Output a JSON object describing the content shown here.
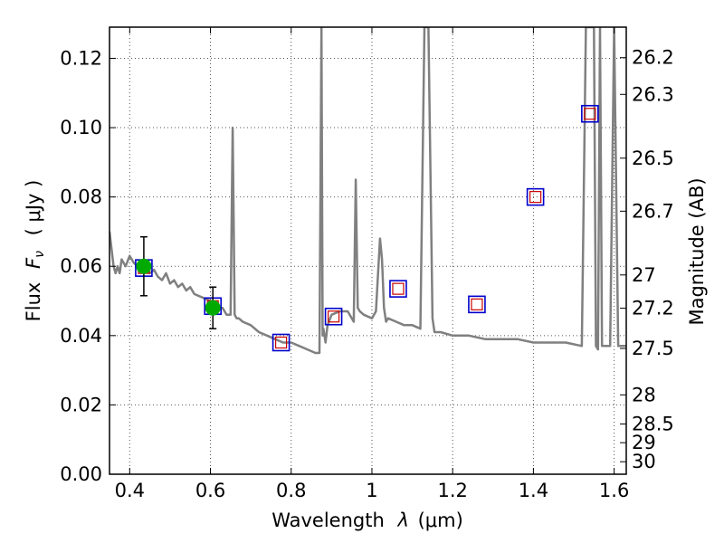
{
  "chart_data": {
    "type": "line",
    "xlabel": "Wavelength",
    "xlabel_symbol": "λ",
    "xlabel_unit": "(μm)",
    "ylabel": "Flux",
    "ylabel_symbol": "F",
    "ylabel_subscript": "ν",
    "ylabel_unit": "( μJy )",
    "y2label": "Magnitude (AB)",
    "xlim": [
      0.35,
      1.63
    ],
    "ylim": [
      0.0,
      0.129
    ],
    "grid": true,
    "x_ticks": [
      0.4,
      0.6,
      0.8,
      1.0,
      1.2,
      1.4,
      1.6
    ],
    "x_tick_labels": [
      "0.4",
      "0.6",
      "0.8",
      "1",
      "1.2",
      "1.4",
      "1.6"
    ],
    "y_ticks": [
      0.0,
      0.02,
      0.04,
      0.06,
      0.08,
      0.1,
      0.12
    ],
    "y_tick_labels": [
      "0.00",
      "0.02",
      "0.04",
      "0.06",
      "0.08",
      "0.10",
      "0.12"
    ],
    "y2_ticks": [
      {
        "label": "26.2",
        "flux": 0.1202
      },
      {
        "label": "26.3",
        "flux": 0.1096
      },
      {
        "label": "26.5",
        "flux": 0.0912
      },
      {
        "label": "26.7",
        "flux": 0.0759
      },
      {
        "label": "27",
        "flux": 0.0575
      },
      {
        "label": "27.2",
        "flux": 0.0479
      },
      {
        "label": "27.5",
        "flux": 0.0363
      },
      {
        "label": "28",
        "flux": 0.0229
      },
      {
        "label": "28.5",
        "flux": 0.0145
      },
      {
        "label": "29",
        "flux": 0.0091
      },
      {
        "label": "30",
        "flux": 0.0036
      }
    ],
    "colors": {
      "sed": "#808080",
      "observed": "#00aa00",
      "errorbar": "#000000",
      "model_outer": "#0000cc",
      "model_inner": "#cc0000",
      "grid": "#555555"
    },
    "series": [
      {
        "role": "sed_model",
        "x": [
          0.35,
          0.36,
          0.365,
          0.37,
          0.375,
          0.38,
          0.39,
          0.4,
          0.41,
          0.42,
          0.43,
          0.44,
          0.45,
          0.46,
          0.47,
          0.48,
          0.49,
          0.5,
          0.51,
          0.52,
          0.53,
          0.54,
          0.55,
          0.56,
          0.58,
          0.6,
          0.62,
          0.63,
          0.64,
          0.65,
          0.655,
          0.66,
          0.665,
          0.67,
          0.68,
          0.7,
          0.72,
          0.74,
          0.76,
          0.78,
          0.8,
          0.82,
          0.84,
          0.86,
          0.87,
          0.875,
          0.878,
          0.88,
          0.885,
          0.89,
          0.9,
          0.92,
          0.94,
          0.955,
          0.96,
          0.965,
          0.97,
          0.98,
          1.0,
          1.01,
          1.02,
          1.025,
          1.03,
          1.035,
          1.04,
          1.06,
          1.08,
          1.1,
          1.12,
          1.13,
          1.135,
          1.14,
          1.15,
          1.155,
          1.16,
          1.17,
          1.2,
          1.24,
          1.28,
          1.32,
          1.36,
          1.4,
          1.44,
          1.48,
          1.52,
          1.53,
          1.535,
          1.54,
          1.55,
          1.555,
          1.56,
          1.565,
          1.57,
          1.59,
          1.6,
          1.61,
          1.63
        ],
        "y": [
          0.07,
          0.06,
          0.058,
          0.06,
          0.058,
          0.062,
          0.06,
          0.063,
          0.061,
          0.06,
          0.059,
          0.061,
          0.058,
          0.059,
          0.057,
          0.056,
          0.058,
          0.055,
          0.056,
          0.054,
          0.055,
          0.053,
          0.054,
          0.052,
          0.051,
          0.05,
          0.048,
          0.048,
          0.046,
          0.046,
          0.1,
          0.046,
          0.045,
          0.045,
          0.044,
          0.043,
          0.041,
          0.04,
          0.039,
          0.038,
          0.038,
          0.037,
          0.036,
          0.035,
          0.035,
          0.129,
          0.04,
          0.042,
          0.038,
          0.043,
          0.046,
          0.047,
          0.047,
          0.044,
          0.085,
          0.048,
          0.047,
          0.046,
          0.045,
          0.047,
          0.068,
          0.062,
          0.048,
          0.044,
          0.045,
          0.044,
          0.043,
          0.043,
          0.042,
          0.129,
          0.129,
          0.129,
          0.045,
          0.041,
          0.041,
          0.041,
          0.04,
          0.04,
          0.039,
          0.039,
          0.039,
          0.038,
          0.038,
          0.038,
          0.037,
          0.129,
          0.129,
          0.129,
          0.129,
          0.037,
          0.036,
          0.129,
          0.037,
          0.037,
          0.129,
          0.037,
          0.037
        ]
      },
      {
        "role": "observed",
        "name": "observed",
        "points": [
          {
            "x": 0.435,
            "y": 0.06,
            "yerr": 0.0085
          },
          {
            "x": 0.606,
            "y": 0.048,
            "yerr": 0.006
          }
        ]
      },
      {
        "role": "model_photometry",
        "points": [
          {
            "x": 0.435,
            "y": 0.0595
          },
          {
            "x": 0.606,
            "y": 0.0485
          },
          {
            "x": 0.775,
            "y": 0.038
          },
          {
            "x": 0.905,
            "y": 0.0455
          },
          {
            "x": 1.065,
            "y": 0.0535
          },
          {
            "x": 1.26,
            "y": 0.049
          },
          {
            "x": 1.405,
            "y": 0.08
          },
          {
            "x": 1.54,
            "y": 0.104
          }
        ]
      }
    ]
  }
}
